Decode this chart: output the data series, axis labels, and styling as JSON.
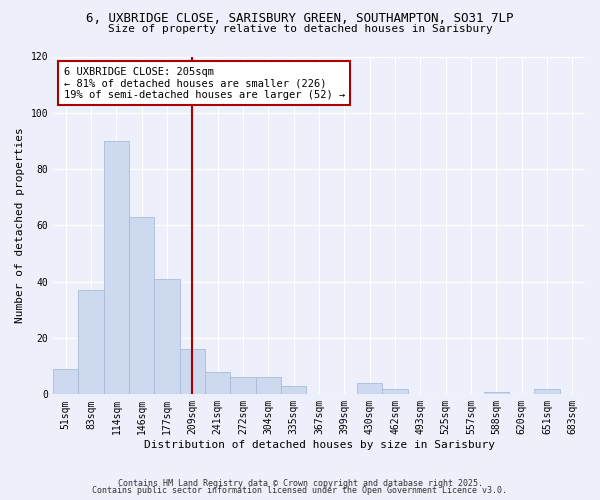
{
  "title_line1": "6, UXBRIDGE CLOSE, SARISBURY GREEN, SOUTHAMPTON, SO31 7LP",
  "title_line2": "Size of property relative to detached houses in Sarisbury",
  "xlabel": "Distribution of detached houses by size in Sarisbury",
  "ylabel": "Number of detached properties",
  "bar_labels": [
    "51sqm",
    "83sqm",
    "114sqm",
    "146sqm",
    "177sqm",
    "209sqm",
    "241sqm",
    "272sqm",
    "304sqm",
    "335sqm",
    "367sqm",
    "399sqm",
    "430sqm",
    "462sqm",
    "493sqm",
    "525sqm",
    "557sqm",
    "588sqm",
    "620sqm",
    "651sqm",
    "683sqm"
  ],
  "bar_values": [
    9,
    37,
    90,
    63,
    41,
    16,
    8,
    6,
    6,
    3,
    0,
    0,
    4,
    2,
    0,
    0,
    0,
    1,
    0,
    2,
    0
  ],
  "bar_color": "#ccd9ee",
  "bar_edge_color": "#a8bdd8",
  "vline_x_index": 5,
  "vline_color": "#aa0000",
  "annotation_title": "6 UXBRIDGE CLOSE: 205sqm",
  "annotation_line2": "← 81% of detached houses are smaller (226)",
  "annotation_line3": "19% of semi-detached houses are larger (52) →",
  "annotation_box_color": "#ffffff",
  "annotation_box_edge": "#aa0000",
  "ylim": [
    0,
    120
  ],
  "yticks": [
    0,
    20,
    40,
    60,
    80,
    100,
    120
  ],
  "footer_line1": "Contains HM Land Registry data © Crown copyright and database right 2025.",
  "footer_line2": "Contains public sector information licensed under the Open Government Licence v3.0.",
  "background_color": "#edf0fa",
  "grid_color": "#ffffff",
  "title_fontsize": 9,
  "subtitle_fontsize": 8,
  "axis_label_fontsize": 8,
  "tick_fontsize": 7,
  "annotation_fontsize": 7.5,
  "footer_fontsize": 6
}
